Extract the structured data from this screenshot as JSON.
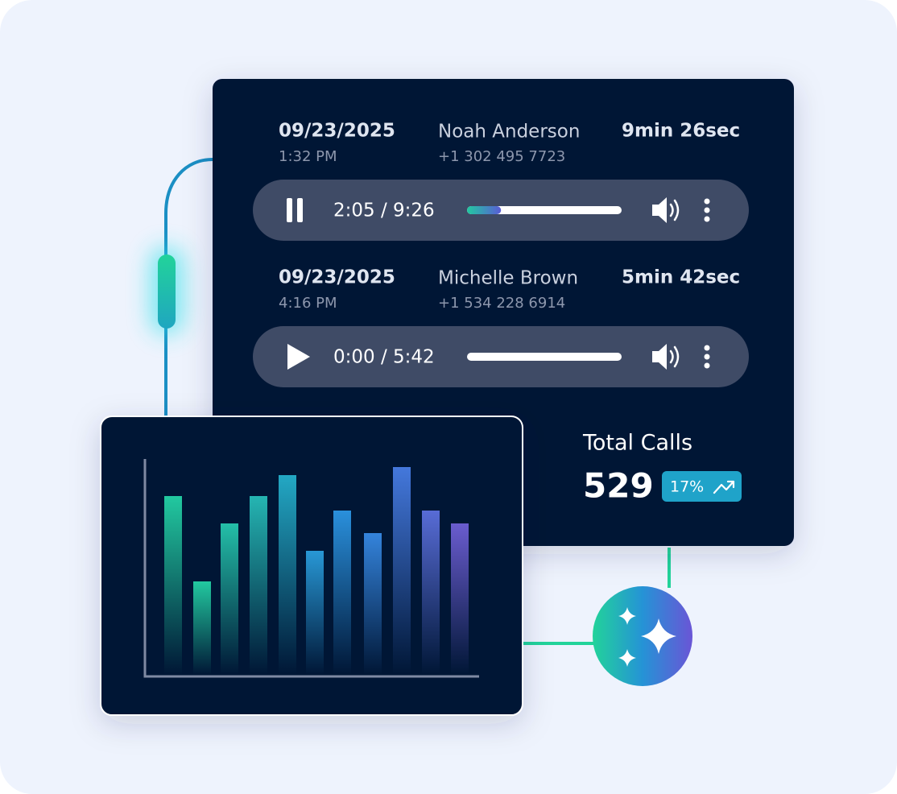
{
  "calls": [
    {
      "date": "09/23/2025",
      "time": "1:32 PM",
      "name": "Noah Anderson",
      "phone": "+1 302 495 7723",
      "duration": "9min 26sec",
      "position": "2:05 / 9:26",
      "progress": 0.22,
      "playing": true
    },
    {
      "date": "09/23/2025",
      "time": "4:16 PM",
      "name": "Michelle Brown",
      "phone": "+1 534 228 6914",
      "duration": "5min 42sec",
      "position": "0:00 / 5:42",
      "progress": 0,
      "playing": false
    }
  ],
  "summary": {
    "label": "Total Calls",
    "value": 529,
    "change": "17%"
  },
  "chart_data": {
    "type": "bar",
    "categories": [
      null,
      null,
      null,
      null,
      null,
      null,
      null,
      null,
      null,
      null,
      null
    ],
    "values": [
      224,
      118,
      190,
      224,
      250,
      156,
      206,
      178,
      260,
      206,
      190
    ],
    "ylim": [
      0,
      270
    ],
    "colors": [
      "#22c9a0",
      "#22c9a0",
      "#24bfa8",
      "#25b5b2",
      "#23a8c4",
      "#2898d6",
      "#2a90dc",
      "#3484dc",
      "#4478dc",
      "#586cd6",
      "#6a5ccf"
    ]
  }
}
